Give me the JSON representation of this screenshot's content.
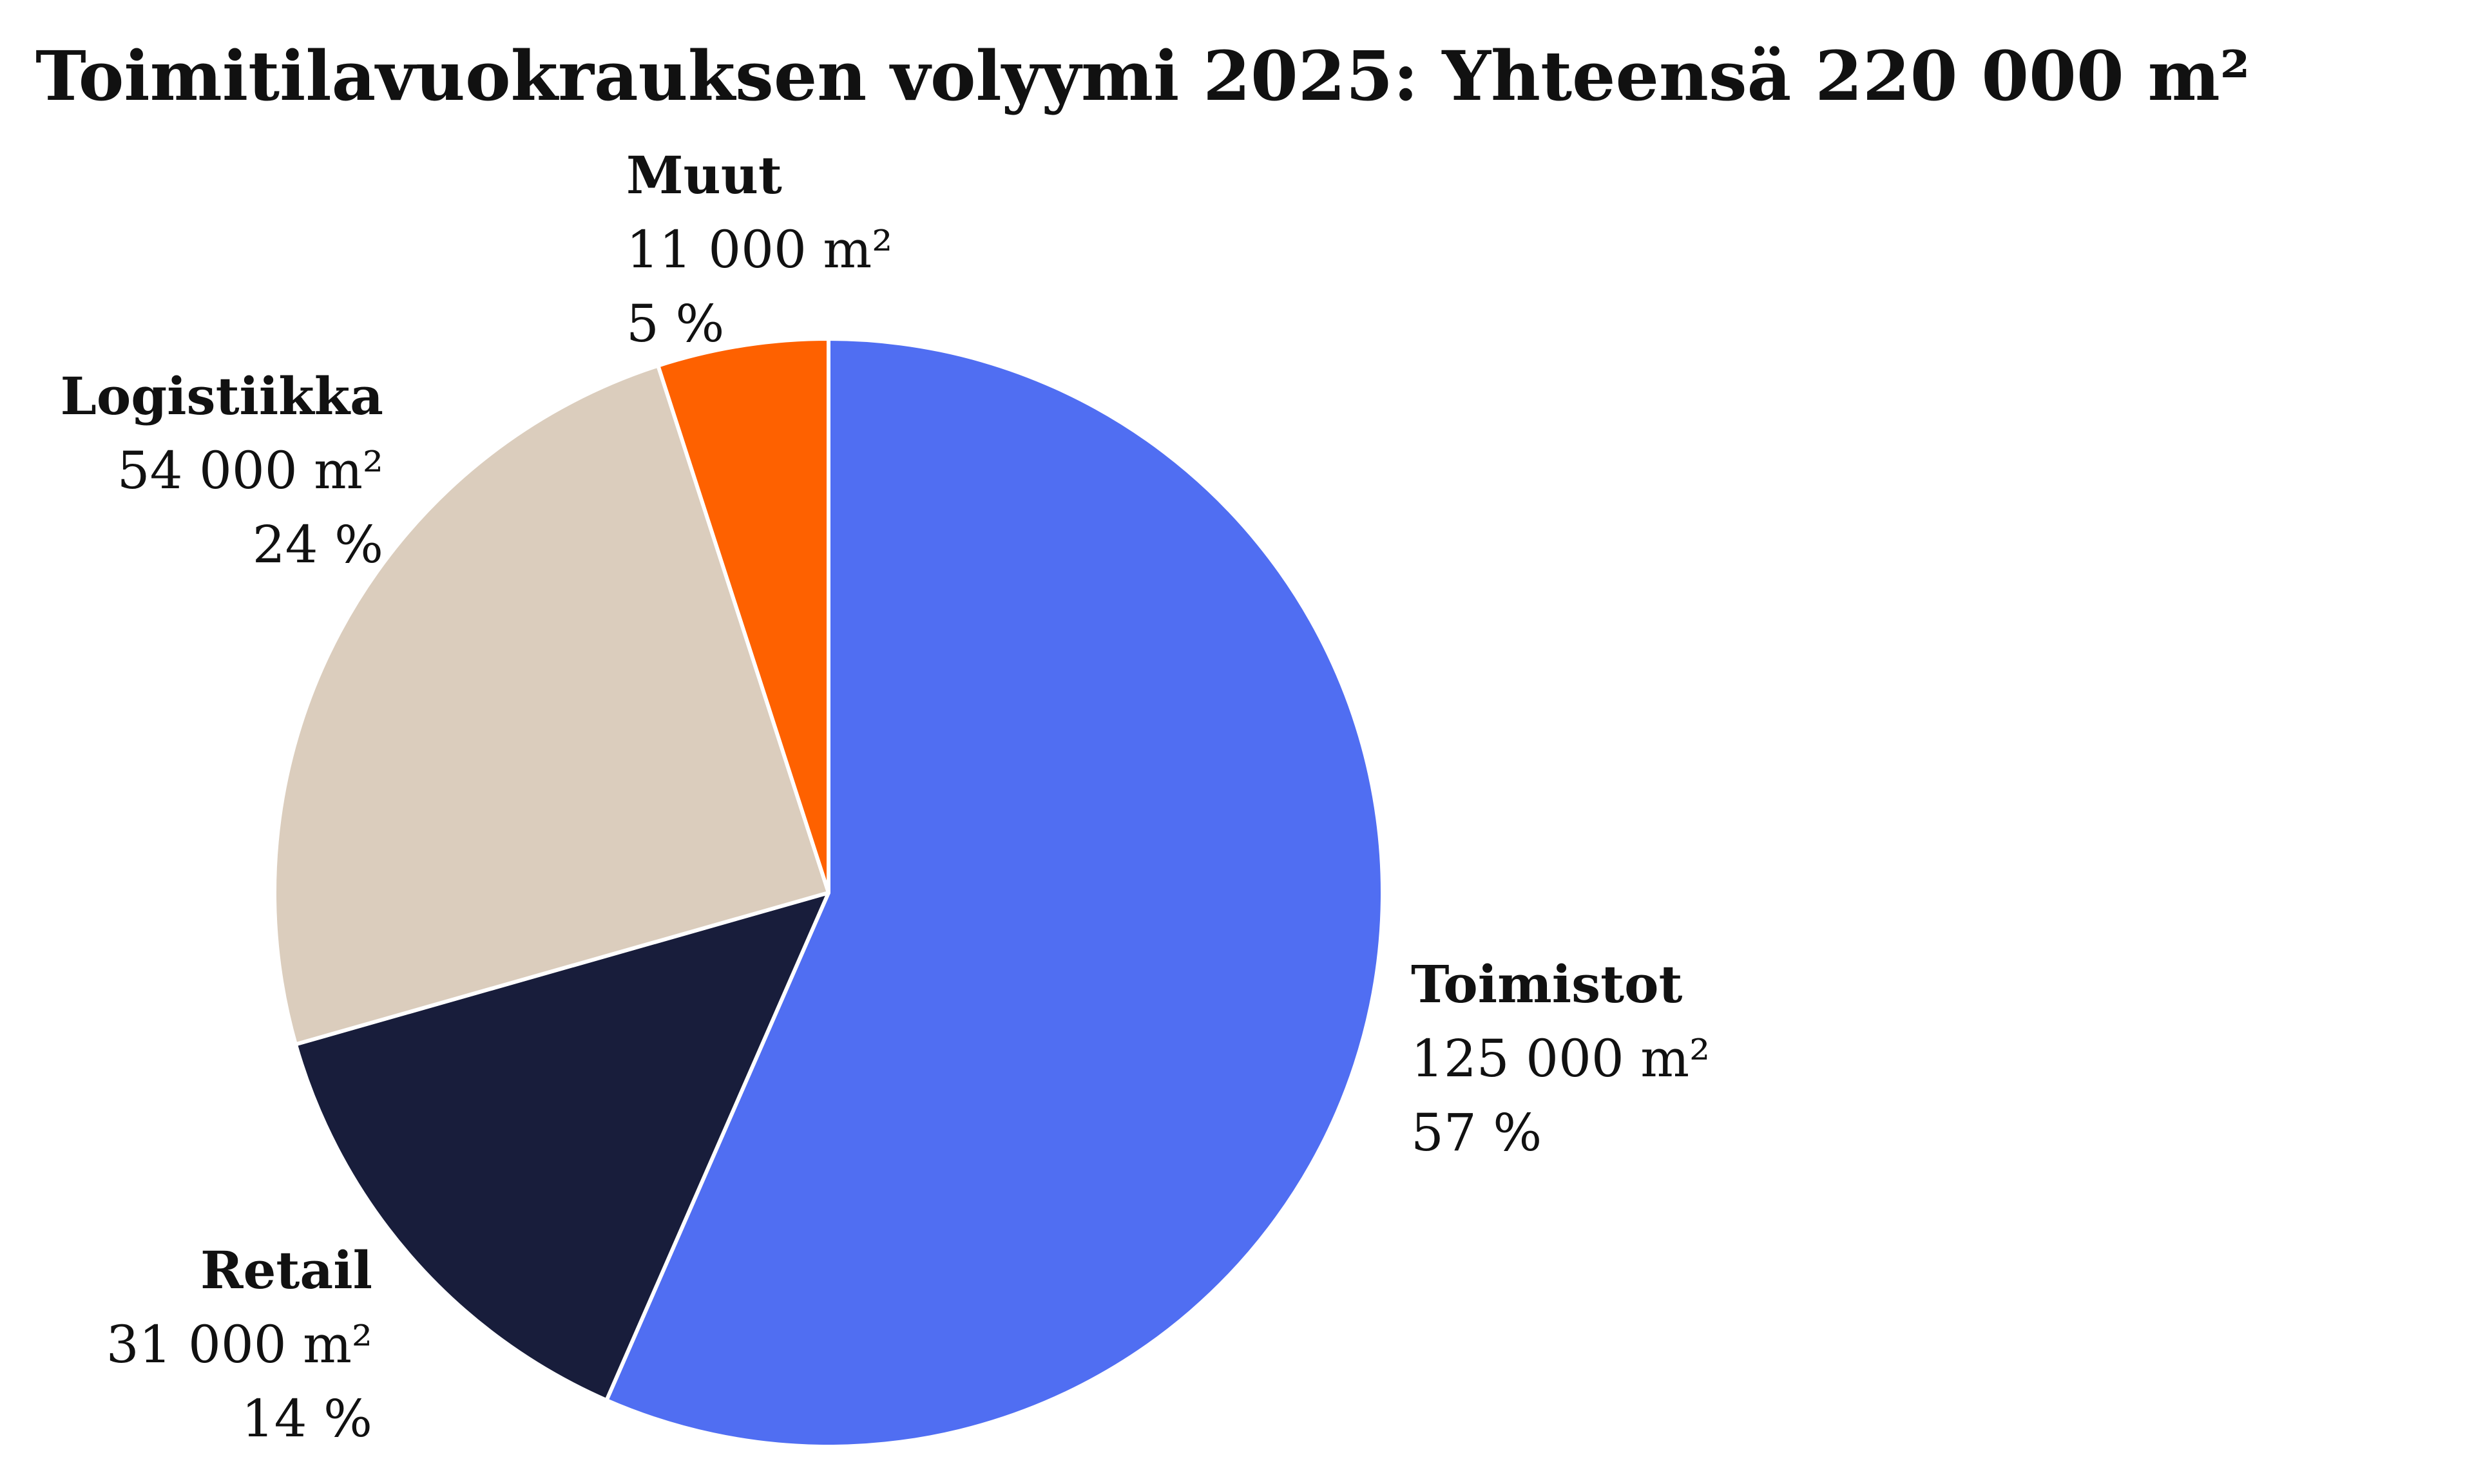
{
  "chart_data": {
    "type": "pie",
    "title": "Toimitilavuokrauksen volyymi 2025: Yhteensä 220 000 m²",
    "start_angle_deg": 0,
    "direction": "clockwise",
    "slice_border_color": "#ffffff",
    "slices": [
      {
        "label": "Toimistot",
        "value": 125000,
        "value_text": "125 000 m²",
        "percent_text": "57 %",
        "color": "#506ef2"
      },
      {
        "label": "Retail",
        "value": 31000,
        "value_text": "31 000 m²",
        "percent_text": "14 %",
        "color": "#181d3b"
      },
      {
        "label": "Logistiikka",
        "value": 54000,
        "value_text": "54 000 m²",
        "percent_text": "24 %",
        "color": "#dbcdbd"
      },
      {
        "label": "Muut",
        "value": 11000,
        "value_text": "11 000 m²",
        "percent_text": "5 %",
        "color": "#fe6100"
      }
    ]
  }
}
